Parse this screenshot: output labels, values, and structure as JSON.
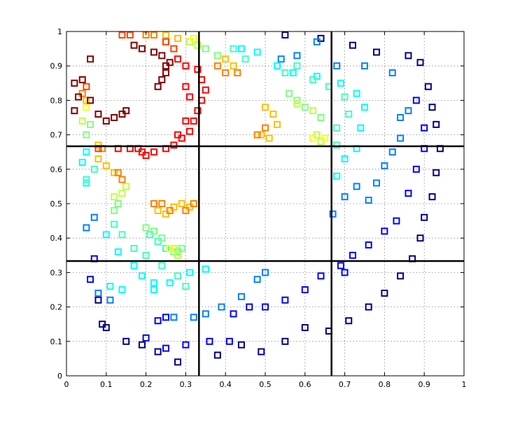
{
  "chart_data": {
    "type": "scatter",
    "title": "",
    "xlabel": "",
    "ylabel": "",
    "xlim": [
      0,
      1
    ],
    "ylim": [
      0,
      1
    ],
    "grid": true,
    "grid_style": "dotted",
    "xticks": [
      "0",
      "0.1",
      "0.2",
      "0.3",
      "0.4",
      "0.5",
      "0.6",
      "0.7",
      "0.8",
      "0.9",
      "1"
    ],
    "yticks": [
      "0",
      "0.1",
      "0.2",
      "0.3",
      "0.4",
      "0.5",
      "0.6",
      "0.7",
      "0.8",
      "0.9",
      "1"
    ],
    "partition_lines": {
      "x": [
        0.3333,
        0.6667
      ],
      "y": [
        0.3333,
        0.6667
      ],
      "color": "#000000"
    },
    "series": [
      {
        "color": "#000080",
        "points": [
          [
            0.15,
            0.1
          ],
          [
            0.19,
            0.09
          ],
          [
            0.23,
            0.07
          ],
          [
            0.28,
            0.04
          ],
          [
            0.38,
            0.06
          ],
          [
            0.44,
            0.09
          ],
          [
            0.49,
            0.07
          ],
          [
            0.55,
            0.1
          ],
          [
            0.6,
            0.14
          ],
          [
            0.66,
            0.13
          ],
          [
            0.71,
            0.16
          ],
          [
            0.76,
            0.2
          ],
          [
            0.8,
            0.24
          ],
          [
            0.84,
            0.29
          ],
          [
            0.87,
            0.34
          ],
          [
            0.89,
            0.4
          ],
          [
            0.9,
            0.46
          ],
          [
            0.92,
            0.52
          ],
          [
            0.93,
            0.59
          ],
          [
            0.94,
            0.66
          ],
          [
            0.93,
            0.73
          ],
          [
            0.92,
            0.78
          ],
          [
            0.91,
            0.84
          ],
          [
            0.89,
            0.91
          ],
          [
            0.86,
            0.93
          ],
          [
            0.78,
            0.94
          ],
          [
            0.72,
            0.96
          ],
          [
            0.64,
            0.98
          ],
          [
            0.55,
            0.99
          ],
          [
            0.08,
            0.22
          ],
          [
            0.09,
            0.15
          ],
          [
            0.1,
            0.14
          ]
        ]
      },
      {
        "color": "#0000ff",
        "points": [
          [
            0.2,
            0.11
          ],
          [
            0.25,
            0.08
          ],
          [
            0.3,
            0.09
          ],
          [
            0.36,
            0.1
          ],
          [
            0.41,
            0.1
          ],
          [
            0.42,
            0.18
          ],
          [
            0.46,
            0.2
          ],
          [
            0.5,
            0.2
          ],
          [
            0.55,
            0.22
          ],
          [
            0.6,
            0.25
          ],
          [
            0.64,
            0.29
          ],
          [
            0.69,
            0.32
          ],
          [
            0.72,
            0.35
          ],
          [
            0.76,
            0.38
          ],
          [
            0.8,
            0.42
          ],
          [
            0.83,
            0.45
          ],
          [
            0.86,
            0.53
          ],
          [
            0.88,
            0.6
          ],
          [
            0.9,
            0.66
          ],
          [
            0.9,
            0.72
          ],
          [
            0.88,
            0.8
          ],
          [
            0.06,
            0.28
          ],
          [
            0.07,
            0.34
          ],
          [
            0.23,
            0.16
          ],
          [
            0.25,
            0.17
          ],
          [
            0.7,
            0.3
          ]
        ]
      },
      {
        "color": "#0080ff",
        "points": [
          [
            0.27,
            0.17
          ],
          [
            0.32,
            0.17
          ],
          [
            0.35,
            0.18
          ],
          [
            0.39,
            0.2
          ],
          [
            0.44,
            0.23
          ],
          [
            0.48,
            0.28
          ],
          [
            0.5,
            0.3
          ],
          [
            0.67,
            0.47
          ],
          [
            0.7,
            0.52
          ],
          [
            0.73,
            0.55
          ],
          [
            0.76,
            0.51
          ],
          [
            0.78,
            0.56
          ],
          [
            0.8,
            0.61
          ],
          [
            0.82,
            0.65
          ],
          [
            0.84,
            0.69
          ],
          [
            0.84,
            0.75
          ],
          [
            0.86,
            0.77
          ],
          [
            0.05,
            0.43
          ],
          [
            0.07,
            0.46
          ],
          [
            0.54,
            0.92
          ],
          [
            0.58,
            0.93
          ],
          [
            0.63,
            0.97
          ],
          [
            0.68,
            0.9
          ],
          [
            0.75,
            0.9
          ],
          [
            0.82,
            0.88
          ],
          [
            0.08,
            0.24
          ],
          [
            0.11,
            0.22
          ]
        ]
      },
      {
        "color": "#00ffff",
        "points": [
          [
            0.17,
            0.32
          ],
          [
            0.19,
            0.29
          ],
          [
            0.22,
            0.27
          ],
          [
            0.26,
            0.27
          ],
          [
            0.31,
            0.3
          ],
          [
            0.35,
            0.31
          ],
          [
            0.13,
            0.36
          ],
          [
            0.1,
            0.41
          ],
          [
            0.11,
            0.26
          ],
          [
            0.14,
            0.25
          ],
          [
            0.68,
            0.58
          ],
          [
            0.7,
            0.63
          ],
          [
            0.73,
            0.66
          ],
          [
            0.74,
            0.72
          ],
          [
            0.75,
            0.78
          ],
          [
            0.73,
            0.82
          ],
          [
            0.69,
            0.85
          ],
          [
            0.63,
            0.87
          ],
          [
            0.57,
            0.88
          ],
          [
            0.53,
            0.9
          ],
          [
            0.48,
            0.94
          ],
          [
            0.44,
            0.95
          ],
          [
            0.04,
            0.62
          ],
          [
            0.05,
            0.65
          ],
          [
            0.05,
            0.56
          ],
          [
            0.22,
            0.25
          ]
        ]
      },
      {
        "color": "#40ffbf",
        "points": [
          [
            0.12,
            0.44
          ],
          [
            0.14,
            0.41
          ],
          [
            0.17,
            0.37
          ],
          [
            0.2,
            0.35
          ],
          [
            0.24,
            0.32
          ],
          [
            0.28,
            0.29
          ],
          [
            0.3,
            0.26
          ],
          [
            0.21,
            0.41
          ],
          [
            0.23,
            0.39
          ],
          [
            0.25,
            0.37
          ],
          [
            0.28,
            0.36
          ],
          [
            0.55,
            0.88
          ],
          [
            0.58,
            0.9
          ],
          [
            0.62,
            0.86
          ],
          [
            0.66,
            0.84
          ],
          [
            0.7,
            0.81
          ],
          [
            0.71,
            0.76
          ],
          [
            0.68,
            0.72
          ],
          [
            0.68,
            0.67
          ],
          [
            0.05,
            0.57
          ],
          [
            0.07,
            0.6
          ],
          [
            0.45,
            0.92
          ],
          [
            0.42,
            0.95
          ]
        ]
      },
      {
        "color": "#80ff80",
        "points": [
          [
            0.12,
            0.48
          ],
          [
            0.13,
            0.5
          ],
          [
            0.2,
            0.43
          ],
          [
            0.22,
            0.42
          ],
          [
            0.24,
            0.4
          ],
          [
            0.27,
            0.36
          ],
          [
            0.29,
            0.37
          ],
          [
            0.56,
            0.82
          ],
          [
            0.58,
            0.8
          ],
          [
            0.6,
            0.78
          ],
          [
            0.64,
            0.75
          ],
          [
            0.35,
            0.95
          ],
          [
            0.38,
            0.93
          ],
          [
            0.05,
            0.7
          ],
          [
            0.06,
            0.73
          ]
        ]
      },
      {
        "color": "#bfff40",
        "points": [
          [
            0.12,
            0.52
          ],
          [
            0.14,
            0.53
          ],
          [
            0.15,
            0.55
          ],
          [
            0.27,
            0.37
          ],
          [
            0.28,
            0.35
          ],
          [
            0.58,
            0.79
          ],
          [
            0.62,
            0.77
          ],
          [
            0.63,
            0.7
          ],
          [
            0.64,
            0.68
          ],
          [
            0.31,
            0.97
          ],
          [
            0.33,
            0.96
          ],
          [
            0.04,
            0.74
          ]
        ]
      },
      {
        "color": "#ffff00",
        "points": [
          [
            0.26,
            0.37
          ],
          [
            0.62,
            0.69
          ],
          [
            0.65,
            0.69
          ],
          [
            0.32,
            0.98
          ],
          [
            0.05,
            0.78
          ]
        ]
      },
      {
        "color": "#ffbf00",
        "points": [
          [
            0.08,
            0.63
          ],
          [
            0.1,
            0.61
          ],
          [
            0.12,
            0.59
          ],
          [
            0.08,
            0.67
          ],
          [
            0.23,
            0.48
          ],
          [
            0.25,
            0.47
          ],
          [
            0.27,
            0.49
          ],
          [
            0.29,
            0.5
          ],
          [
            0.31,
            0.49
          ],
          [
            0.49,
            0.7
          ],
          [
            0.51,
            0.69
          ],
          [
            0.53,
            0.73
          ],
          [
            0.52,
            0.76
          ],
          [
            0.5,
            0.78
          ],
          [
            0.4,
            0.92
          ],
          [
            0.42,
            0.9
          ],
          [
            0.25,
            0.99
          ],
          [
            0.28,
            0.98
          ],
          [
            0.05,
            0.8
          ]
        ]
      },
      {
        "color": "#ff8000",
        "points": [
          [
            0.09,
            0.66
          ],
          [
            0.13,
            0.59
          ],
          [
            0.14,
            0.57
          ],
          [
            0.22,
            0.5
          ],
          [
            0.24,
            0.5
          ],
          [
            0.26,
            0.48
          ],
          [
            0.3,
            0.48
          ],
          [
            0.32,
            0.5
          ],
          [
            0.48,
            0.7
          ],
          [
            0.5,
            0.72
          ],
          [
            0.38,
            0.9
          ],
          [
            0.4,
            0.88
          ],
          [
            0.43,
            0.88
          ],
          [
            0.22,
            0.99
          ],
          [
            0.2,
            0.99
          ],
          [
            0.04,
            0.82
          ]
        ]
      },
      {
        "color": "#ff4000",
        "points": [
          [
            0.05,
            0.84
          ],
          [
            0.08,
            0.66
          ],
          [
            0.25,
            0.97
          ],
          [
            0.27,
            0.95
          ],
          [
            0.16,
            0.99
          ],
          [
            0.14,
            0.99
          ]
        ]
      },
      {
        "color": "#ff0000",
        "points": [
          [
            0.13,
            0.66
          ],
          [
            0.16,
            0.66
          ],
          [
            0.19,
            0.65
          ],
          [
            0.22,
            0.65
          ],
          [
            0.25,
            0.66
          ],
          [
            0.27,
            0.67
          ],
          [
            0.29,
            0.69
          ],
          [
            0.31,
            0.71
          ],
          [
            0.32,
            0.74
          ],
          [
            0.33,
            0.77
          ],
          [
            0.34,
            0.8
          ],
          [
            0.35,
            0.83
          ],
          [
            0.34,
            0.86
          ],
          [
            0.33,
            0.89
          ],
          [
            0.3,
            0.9
          ],
          [
            0.28,
            0.92
          ],
          [
            0.3,
            0.84
          ],
          [
            0.31,
            0.81
          ],
          [
            0.3,
            0.74
          ],
          [
            0.28,
            0.7
          ],
          [
            0.2,
            0.64
          ],
          [
            0.18,
            0.66
          ]
        ]
      },
      {
        "color": "#800000",
        "points": [
          [
            0.04,
            0.86
          ],
          [
            0.03,
            0.81
          ],
          [
            0.06,
            0.8
          ],
          [
            0.08,
            0.76
          ],
          [
            0.1,
            0.74
          ],
          [
            0.12,
            0.75
          ],
          [
            0.14,
            0.76
          ],
          [
            0.15,
            0.77
          ],
          [
            0.02,
            0.77
          ],
          [
            0.23,
            0.84
          ],
          [
            0.24,
            0.86
          ],
          [
            0.25,
            0.88
          ],
          [
            0.25,
            0.9
          ],
          [
            0.26,
            0.91
          ],
          [
            0.24,
            0.93
          ],
          [
            0.22,
            0.94
          ],
          [
            0.19,
            0.95
          ],
          [
            0.17,
            0.96
          ],
          [
            0.06,
            0.92
          ],
          [
            0.02,
            0.85
          ]
        ]
      }
    ]
  }
}
